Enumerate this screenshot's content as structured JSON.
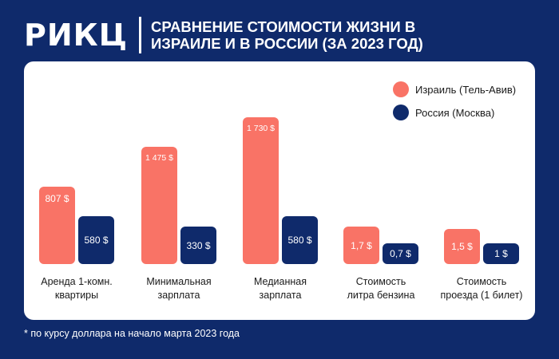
{
  "header": {
    "logo": "РИКЦ",
    "title": "Сравнение стоимости жизни в Израиле и в России (за 2023 год)"
  },
  "colors": {
    "israel": "#f97366",
    "russia": "#0f2a6b",
    "background": "#0f2a6b"
  },
  "chart_data": {
    "type": "bar",
    "categories": [
      "Аренда 1-комн.\nквартиры",
      "Минимальная\nзарплата",
      "Медианная\nзарплата",
      "Стоимость\nлитра бензина",
      "Стоимость\nпроезда (1 билет)"
    ],
    "series": [
      {
        "name": "Израиль (Тель-Авив)",
        "color": "#f97366",
        "values": [
          807,
          1475,
          1730,
          1.7,
          1.5
        ],
        "labels": [
          "807 $",
          "1 475 $",
          "1 730 $",
          "1,7 $",
          "1,5 $"
        ]
      },
      {
        "name": "Россия (Москва)",
        "color": "#0f2a6b",
        "values": [
          580,
          330,
          580,
          0.7,
          1
        ],
        "labels": [
          "580 $",
          "330 $",
          "580 $",
          "0,7 $",
          "1 $"
        ]
      }
    ],
    "legend_position": "top-right",
    "grid": false
  },
  "footnote": "* по курсу доллара на начало марта 2023 года"
}
